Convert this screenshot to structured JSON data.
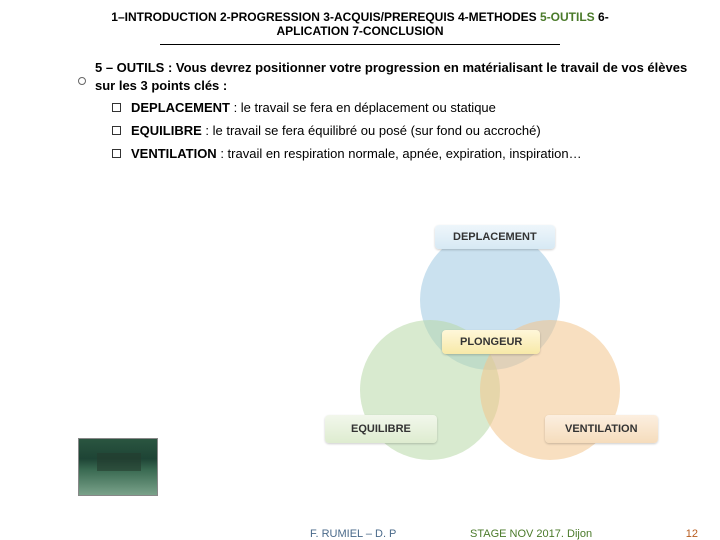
{
  "header": {
    "pre": "1–INTRODUCTION 2-PROGRESSION 3-ACQUIS/PREREQUIS 4-METHODES ",
    "highlight": "5-OUTILS",
    "post": " 6-APLICATION 7-CONCLUSION"
  },
  "intro": "5 – OUTILS : Vous devrez positionner votre progression en matérialisant le travail de vos élèves sur les 3 points clés :",
  "bullets": [
    {
      "lead": "DEPLACEMENT",
      "rest": " : le travail se fera en déplacement ou statique"
    },
    {
      "lead": "EQUILIBRE",
      "rest": " : le travail se fera équilibré ou posé (sur fond ou accroché)"
    },
    {
      "lead": "VENTILATION",
      "rest": " : travail en respiration normale, apnée, expiration, inspiration…"
    }
  ],
  "diagram": {
    "top": "DEPLACEMENT",
    "center": "PLONGEUR",
    "left": "EQUILIBRE",
    "right": "VENTILATION",
    "colors": {
      "blue": "#9ec9e2",
      "green": "#b8d8a8",
      "orange": "#f2c48d"
    }
  },
  "footer": {
    "author": "F. RUMIEL – D. P",
    "stage": "STAGE NOV 2017. Dijon",
    "page": "12"
  }
}
